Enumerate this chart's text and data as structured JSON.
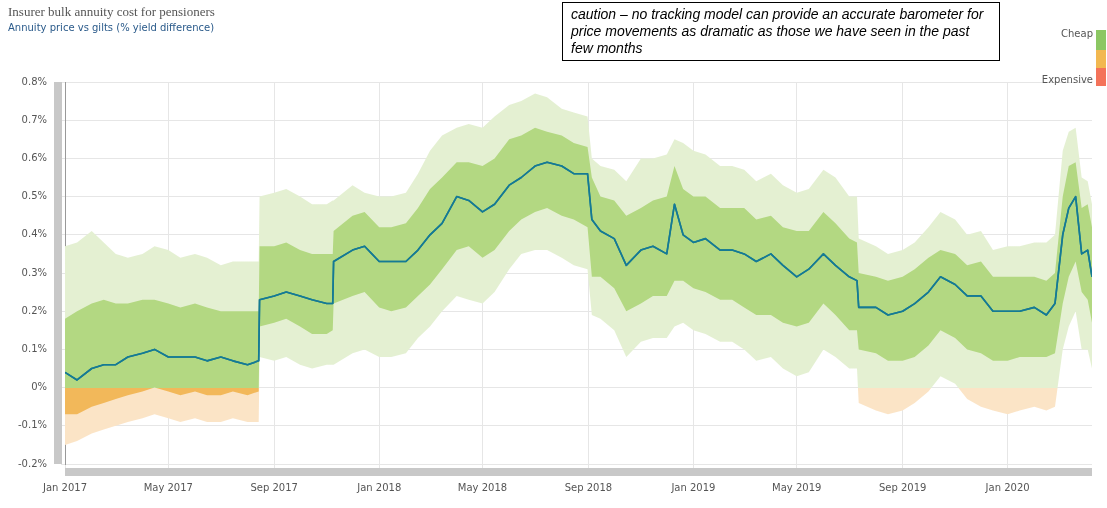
{
  "chart_data": {
    "type": "line",
    "title": "Insurer bulk annuity cost for pensioners",
    "subtitle": "Annuity price vs gilts (% yield difference)",
    "annotations": [
      "caution – no tracking model can provide an accurate barometer for price movements as dramatic as those we have seen in the past few months",
      "Cheap",
      "Expensive"
    ],
    "x": [
      "2017-01-01",
      "2017-01-15",
      "2017-02-01",
      "2017-02-15",
      "2017-03-01",
      "2017-03-15",
      "2017-04-01",
      "2017-04-15",
      "2017-05-01",
      "2017-05-15",
      "2017-06-01",
      "2017-06-15",
      "2017-07-01",
      "2017-07-15",
      "2017-08-01",
      "2017-08-14",
      "2017-08-15",
      "2017-09-01",
      "2017-09-15",
      "2017-10-01",
      "2017-10-15",
      "2017-11-01",
      "2017-11-08",
      "2017-11-09",
      "2017-12-01",
      "2017-12-15",
      "2018-01-01",
      "2018-01-15",
      "2018-02-01",
      "2018-02-15",
      "2018-03-01",
      "2018-03-15",
      "2018-04-01",
      "2018-04-15",
      "2018-05-01",
      "2018-05-15",
      "2018-06-01",
      "2018-06-15",
      "2018-07-01",
      "2018-07-15",
      "2018-08-01",
      "2018-08-15",
      "2018-08-31",
      "2018-09-05",
      "2018-09-15",
      "2018-10-01",
      "2018-10-15",
      "2018-11-01",
      "2018-11-15",
      "2018-12-01",
      "2018-12-10",
      "2018-12-20",
      "2019-01-01",
      "2019-01-15",
      "2019-02-01",
      "2019-02-15",
      "2019-03-01",
      "2019-03-15",
      "2019-04-01",
      "2019-04-15",
      "2019-05-01",
      "2019-05-15",
      "2019-06-01",
      "2019-06-15",
      "2019-07-01",
      "2019-07-10",
      "2019-07-12",
      "2019-08-01",
      "2019-08-15",
      "2019-09-01",
      "2019-09-15",
      "2019-10-01",
      "2019-10-15",
      "2019-11-01",
      "2019-11-15",
      "2019-12-01",
      "2019-12-15",
      "2020-01-01",
      "2020-01-15",
      "2020-02-01",
      "2020-02-15",
      "2020-02-25",
      "2020-03-05",
      "2020-03-12",
      "2020-03-20",
      "2020-03-27",
      "2020-04-03",
      "2020-04-08"
    ],
    "series": [
      {
        "color": "#157a94",
        "values": [
          0.04,
          0.02,
          0.05,
          0.06,
          0.06,
          0.08,
          0.09,
          0.1,
          0.08,
          0.08,
          0.08,
          0.07,
          0.08,
          0.07,
          0.06,
          0.07,
          0.23,
          0.24,
          0.25,
          0.24,
          0.23,
          0.22,
          0.22,
          0.33,
          0.36,
          0.37,
          0.33,
          0.33,
          0.33,
          0.36,
          0.4,
          0.43,
          0.5,
          0.49,
          0.46,
          0.48,
          0.53,
          0.55,
          0.58,
          0.59,
          0.58,
          0.56,
          0.56,
          0.44,
          0.41,
          0.39,
          0.32,
          0.36,
          0.37,
          0.35,
          0.48,
          0.4,
          0.38,
          0.39,
          0.36,
          0.36,
          0.35,
          0.33,
          0.35,
          0.32,
          0.29,
          0.31,
          0.35,
          0.32,
          0.29,
          0.28,
          0.21,
          0.21,
          0.19,
          0.2,
          0.22,
          0.25,
          0.29,
          0.27,
          0.24,
          0.24,
          0.2,
          0.2,
          0.2,
          0.21,
          0.19,
          0.22,
          0.4,
          0.47,
          0.5,
          0.35,
          0.36,
          0.29
        ],
        "lower": [
          -0.07,
          -0.07,
          -0.05,
          -0.04,
          -0.03,
          -0.02,
          -0.01,
          0.0,
          -0.01,
          -0.02,
          -0.01,
          -0.02,
          -0.02,
          -0.01,
          -0.02,
          -0.01,
          0.16,
          0.17,
          0.18,
          0.16,
          0.14,
          0.14,
          0.15,
          0.22,
          0.24,
          0.25,
          0.21,
          0.2,
          0.21,
          0.24,
          0.27,
          0.31,
          0.36,
          0.37,
          0.34,
          0.36,
          0.41,
          0.44,
          0.46,
          0.47,
          0.45,
          0.44,
          0.42,
          0.29,
          0.29,
          0.26,
          0.2,
          0.22,
          0.24,
          0.24,
          0.28,
          0.28,
          0.26,
          0.25,
          0.23,
          0.23,
          0.21,
          0.19,
          0.19,
          0.17,
          0.16,
          0.17,
          0.22,
          0.19,
          0.15,
          0.15,
          0.1,
          0.09,
          0.07,
          0.07,
          0.08,
          0.11,
          0.15,
          0.13,
          0.1,
          0.09,
          0.07,
          0.07,
          0.08,
          0.08,
          0.08,
          0.09,
          0.22,
          0.29,
          0.33,
          0.25,
          0.23,
          0.17
        ],
        "upper": [
          0.18,
          0.2,
          0.22,
          0.23,
          0.22,
          0.22,
          0.23,
          0.23,
          0.22,
          0.21,
          0.22,
          0.21,
          0.2,
          0.2,
          0.2,
          0.2,
          0.37,
          0.37,
          0.38,
          0.36,
          0.35,
          0.35,
          0.35,
          0.41,
          0.45,
          0.46,
          0.42,
          0.42,
          0.43,
          0.47,
          0.52,
          0.55,
          0.59,
          0.59,
          0.58,
          0.6,
          0.65,
          0.66,
          0.68,
          0.67,
          0.66,
          0.64,
          0.63,
          0.55,
          0.5,
          0.49,
          0.45,
          0.47,
          0.49,
          0.5,
          0.58,
          0.52,
          0.5,
          0.5,
          0.47,
          0.47,
          0.47,
          0.44,
          0.45,
          0.42,
          0.41,
          0.41,
          0.46,
          0.43,
          0.39,
          0.38,
          0.3,
          0.29,
          0.28,
          0.29,
          0.31,
          0.34,
          0.36,
          0.35,
          0.32,
          0.33,
          0.29,
          0.29,
          0.29,
          0.29,
          0.28,
          0.3,
          0.5,
          0.58,
          0.59,
          0.47,
          0.48,
          0.42
        ]
      },
      {
        "color": "#157a94",
        "values": [
          0.04,
          0.02,
          0.05,
          0.06,
          0.06,
          0.08,
          0.09,
          0.1,
          0.08,
          0.08,
          0.08,
          0.07,
          0.08,
          0.07,
          0.06,
          0.07,
          0.23,
          0.24,
          0.25,
          0.24,
          0.23,
          0.22,
          0.22,
          0.33,
          0.36,
          0.37,
          0.33,
          0.33,
          0.33,
          0.36,
          0.4,
          0.43,
          0.5,
          0.49,
          0.46,
          0.48,
          0.53,
          0.55,
          0.58,
          0.59,
          0.58,
          0.56,
          0.56,
          0.44,
          0.41,
          0.39,
          0.32,
          0.36,
          0.37,
          0.35,
          0.48,
          0.4,
          0.38,
          0.39,
          0.36,
          0.36,
          0.35,
          0.33,
          0.35,
          0.32,
          0.29,
          0.31,
          0.35,
          0.32,
          0.29,
          0.28,
          0.21,
          0.21,
          0.19,
          0.2,
          0.22,
          0.25,
          0.29,
          0.27,
          0.24,
          0.24,
          0.2,
          0.2,
          0.2,
          0.21,
          0.19,
          0.22,
          0.4,
          0.47,
          0.5,
          0.35,
          0.36,
          0.29
        ],
        "lower": [
          -0.15,
          -0.14,
          -0.12,
          -0.11,
          -0.1,
          -0.09,
          -0.08,
          -0.07,
          -0.08,
          -0.09,
          -0.08,
          -0.09,
          -0.09,
          -0.08,
          -0.09,
          -0.09,
          0.08,
          0.07,
          0.08,
          0.06,
          0.05,
          0.06,
          0.06,
          0.06,
          0.09,
          0.1,
          0.08,
          0.08,
          0.09,
          0.13,
          0.16,
          0.2,
          0.24,
          0.23,
          0.22,
          0.25,
          0.31,
          0.35,
          0.36,
          0.36,
          0.34,
          0.32,
          0.31,
          0.19,
          0.18,
          0.15,
          0.08,
          0.12,
          0.13,
          0.13,
          0.16,
          0.17,
          0.15,
          0.14,
          0.12,
          0.12,
          0.1,
          0.07,
          0.08,
          0.05,
          0.03,
          0.04,
          0.1,
          0.08,
          0.05,
          0.05,
          -0.04,
          -0.06,
          -0.07,
          -0.06,
          -0.04,
          -0.01,
          0.03,
          0.01,
          -0.03,
          -0.05,
          -0.06,
          -0.07,
          -0.06,
          -0.05,
          -0.06,
          -0.05,
          0.1,
          0.16,
          0.2,
          0.1,
          0.1,
          0.05
        ],
        "upper": [
          0.37,
          0.38,
          0.41,
          0.38,
          0.35,
          0.34,
          0.35,
          0.37,
          0.36,
          0.34,
          0.35,
          0.34,
          0.32,
          0.33,
          0.33,
          0.33,
          0.5,
          0.51,
          0.52,
          0.5,
          0.48,
          0.48,
          0.49,
          0.49,
          0.53,
          0.51,
          0.5,
          0.5,
          0.51,
          0.56,
          0.62,
          0.66,
          0.68,
          0.69,
          0.68,
          0.71,
          0.74,
          0.75,
          0.77,
          0.76,
          0.73,
          0.72,
          0.71,
          0.6,
          0.58,
          0.57,
          0.54,
          0.6,
          0.6,
          0.61,
          0.65,
          0.64,
          0.62,
          0.61,
          0.58,
          0.58,
          0.57,
          0.54,
          0.56,
          0.53,
          0.51,
          0.52,
          0.57,
          0.55,
          0.5,
          0.5,
          0.39,
          0.37,
          0.35,
          0.36,
          0.38,
          0.42,
          0.46,
          0.44,
          0.4,
          0.41,
          0.36,
          0.37,
          0.37,
          0.38,
          0.38,
          0.4,
          0.62,
          0.67,
          0.68,
          0.55,
          0.54,
          0.48
        ]
      }
    ],
    "xlim": [
      "2017-01-01",
      "2020-04-08"
    ],
    "xticks": [
      {
        "value": "2017-01-01",
        "label": "Jan 2017"
      },
      {
        "value": "2017-05-01",
        "label": "May 2017"
      },
      {
        "value": "2017-09-01",
        "label": "Sep 2017"
      },
      {
        "value": "2018-01-01",
        "label": "Jan 2018"
      },
      {
        "value": "2018-05-01",
        "label": "May 2018"
      },
      {
        "value": "2018-09-01",
        "label": "Sep 2018"
      },
      {
        "value": "2019-01-01",
        "label": "Jan 2019"
      },
      {
        "value": "2019-05-01",
        "label": "May 2019"
      },
      {
        "value": "2019-09-01",
        "label": "Sep 2019"
      },
      {
        "value": "2020-01-01",
        "label": "Jan 2020"
      }
    ],
    "ylim": [
      -0.2,
      0.8
    ],
    "yticks": [
      {
        "value": -0.2,
        "label": "-0.2%"
      },
      {
        "value": -0.1,
        "label": "-0.1%"
      },
      {
        "value": 0,
        "label": "0%"
      },
      {
        "value": 0.1,
        "label": "0.1%"
      },
      {
        "value": 0.2,
        "label": "0.2%"
      },
      {
        "value": 0.3,
        "label": "0.3%"
      },
      {
        "value": 0.4,
        "label": "0.4%"
      },
      {
        "value": 0.5,
        "label": "0.5%"
      },
      {
        "value": 0.6,
        "label": "0.6%"
      },
      {
        "value": 0.7,
        "label": "0.7%"
      },
      {
        "value": 0.8,
        "label": "0.8%"
      }
    ],
    "grid": true,
    "legend": false,
    "marker": "none",
    "line_style": "solid"
  }
}
